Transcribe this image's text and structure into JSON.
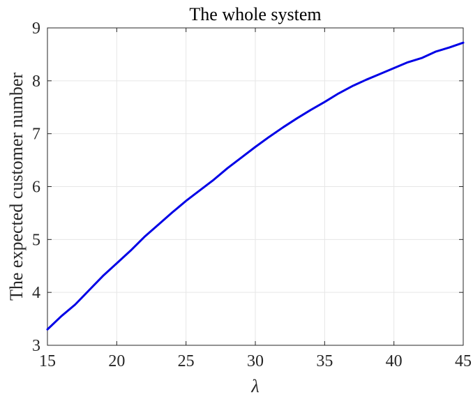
{
  "chart_data": {
    "type": "line",
    "title": "The whole system",
    "xlabel": "λ",
    "ylabel": "The expected customer number",
    "xlim": [
      15,
      45
    ],
    "ylim": [
      3,
      9
    ],
    "xticks": [
      15,
      20,
      25,
      30,
      35,
      40,
      45
    ],
    "yticks": [
      3,
      4,
      5,
      6,
      7,
      8,
      9
    ],
    "x_tick_labels": [
      "15",
      "20",
      "25",
      "30",
      "35",
      "40",
      "45"
    ],
    "y_tick_labels": [
      "3",
      "4",
      "5",
      "6",
      "7",
      "8",
      "9"
    ],
    "grid": true,
    "legend": "none",
    "series": [
      {
        "color": "#0000e6",
        "x": [
          15,
          16,
          17,
          18,
          19,
          20,
          21,
          22,
          23,
          24,
          25,
          26,
          27,
          28,
          29,
          30,
          31,
          32,
          33,
          34,
          35,
          36,
          37,
          38,
          39,
          40,
          41,
          42,
          43,
          44,
          45
        ],
        "y": [
          3.3,
          3.55,
          3.77,
          4.04,
          4.31,
          4.55,
          4.79,
          5.05,
          5.28,
          5.51,
          5.73,
          5.93,
          6.13,
          6.35,
          6.55,
          6.75,
          6.94,
          7.12,
          7.29,
          7.45,
          7.6,
          7.76,
          7.9,
          8.02,
          8.13,
          8.24,
          8.35,
          8.43,
          8.55,
          8.63,
          8.72
        ]
      }
    ]
  }
}
